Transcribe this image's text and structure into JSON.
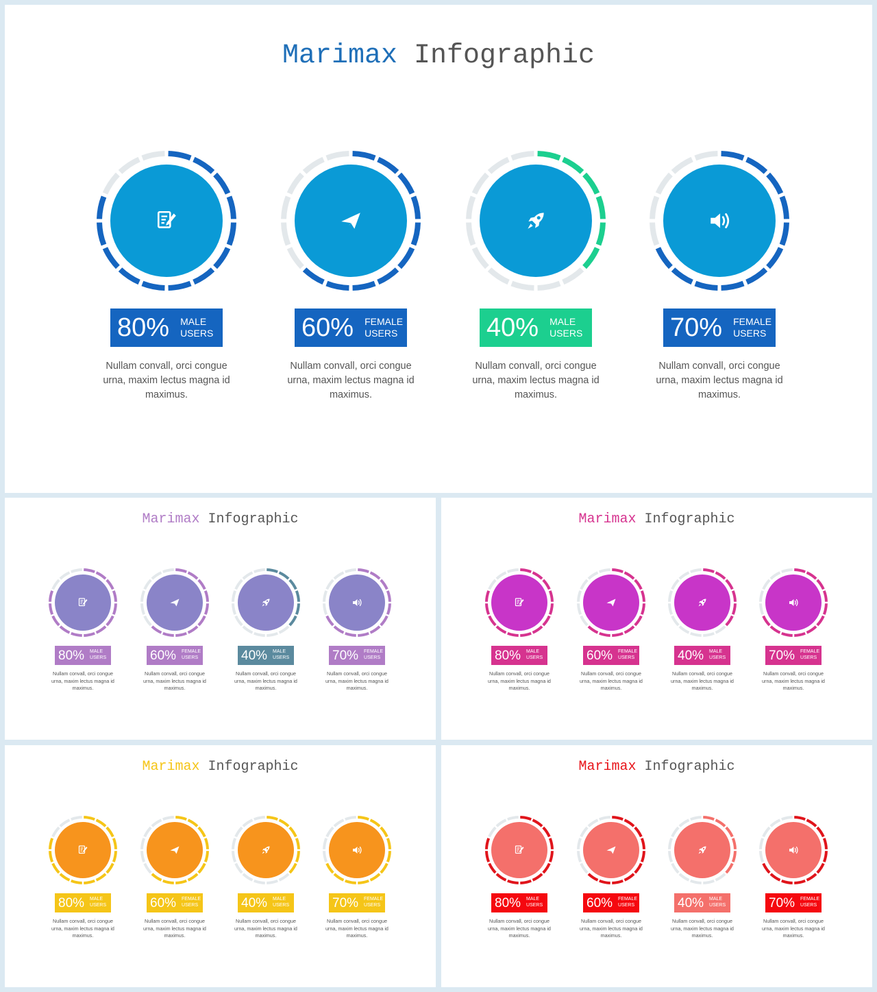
{
  "slides": [
    {
      "title_a": "Marimax",
      "title_b": "Infographic",
      "title_color": "#1f6fb8",
      "items": [
        {
          "icon": "document-edit-icon",
          "percent": "80%",
          "label1": "MALE",
          "label2": "USERS",
          "value": 0.8,
          "fill": "#0a9ad6",
          "arc": "#1565c0",
          "box": "#1565c0",
          "desc": [
            "Nullam convall, orci congue",
            "urna, maxim lectus magna id",
            "maximus."
          ]
        },
        {
          "icon": "paper-plane-icon",
          "percent": "60%",
          "label1": "FEMALE",
          "label2": "USERS",
          "value": 0.6,
          "fill": "#0a9ad6",
          "arc": "#1565c0",
          "box": "#1565c0",
          "desc": [
            "Nullam convall, orci congue",
            "urna, maxim lectus magna id",
            "maximus."
          ]
        },
        {
          "icon": "rocket-icon",
          "percent": "40%",
          "label1": "MALE",
          "label2": "USERS",
          "value": 0.4,
          "fill": "#0a9ad6",
          "arc": "#1ccf8f",
          "box": "#1ccf8f",
          "desc": [
            "Nullam convall, orci congue",
            "urna, maxim lectus magna id",
            "maximus."
          ]
        },
        {
          "icon": "speaker-icon",
          "percent": "70%",
          "label1": "FEMALE",
          "label2": "USERS",
          "value": 0.7,
          "fill": "#0a9ad6",
          "arc": "#1565c0",
          "box": "#1565c0",
          "desc": [
            "Nullam convall, orci congue",
            "urna, maxim lectus magna id",
            "maximus."
          ]
        }
      ]
    },
    {
      "title_a": "Marimax",
      "title_b": "Infographic",
      "title_color": "#b07cc6",
      "items": [
        {
          "icon": "document-edit-icon",
          "percent": "80%",
          "label1": "MALE",
          "label2": "USERS",
          "value": 0.8,
          "fill": "#8a84c8",
          "arc": "#b07cc6",
          "box": "#b07cc6",
          "desc": [
            "Nullam convall, orci congue",
            "urna, maxim lectus magna id",
            "maximus."
          ]
        },
        {
          "icon": "paper-plane-icon",
          "percent": "60%",
          "label1": "FEMALE",
          "label2": "USERS",
          "value": 0.6,
          "fill": "#8a84c8",
          "arc": "#b07cc6",
          "box": "#b07cc6",
          "desc": [
            "Nullam convall, orci congue",
            "urna, maxim lectus magna id",
            "maximus."
          ]
        },
        {
          "icon": "rocket-icon",
          "percent": "40%",
          "label1": "MALE",
          "label2": "USERS",
          "value": 0.4,
          "fill": "#8a84c8",
          "arc": "#5b8a9e",
          "box": "#5b8a9e",
          "desc": [
            "Nullam convall, orci congue",
            "urna, maxim lectus magna id",
            "maximus."
          ]
        },
        {
          "icon": "speaker-icon",
          "percent": "70%",
          "label1": "FEMALE",
          "label2": "USERS",
          "value": 0.7,
          "fill": "#8a84c8",
          "arc": "#b07cc6",
          "box": "#b07cc6",
          "desc": [
            "Nullam convall, orci congue",
            "urna, maxim lectus magna id",
            "maximus."
          ]
        }
      ]
    },
    {
      "title_a": "Marimax",
      "title_b": "Infographic",
      "title_color": "#d6338f",
      "items": [
        {
          "icon": "document-edit-icon",
          "percent": "80%",
          "label1": "MALE",
          "label2": "USERS",
          "value": 0.8,
          "fill": "#c835c8",
          "arc": "#d6338f",
          "box": "#d6338f",
          "desc": [
            "Nullam convall, orci congue",
            "urna, maxim lectus magna id",
            "maximus."
          ]
        },
        {
          "icon": "paper-plane-icon",
          "percent": "60%",
          "label1": "FEMALE",
          "label2": "USERS",
          "value": 0.6,
          "fill": "#c835c8",
          "arc": "#d6338f",
          "box": "#d6338f",
          "desc": [
            "Nullam convall, orci congue",
            "urna, maxim lectus magna id",
            "maximus."
          ]
        },
        {
          "icon": "rocket-icon",
          "percent": "40%",
          "label1": "MALE",
          "label2": "USERS",
          "value": 0.4,
          "fill": "#c835c8",
          "arc": "#d6338f",
          "box": "#d6338f",
          "desc": [
            "Nullam convall, orci congue",
            "urna, maxim lectus magna id",
            "maximus."
          ]
        },
        {
          "icon": "speaker-icon",
          "percent": "70%",
          "label1": "FEMALE",
          "label2": "USERS",
          "value": 0.7,
          "fill": "#c835c8",
          "arc": "#d6338f",
          "box": "#d6338f",
          "desc": [
            "Nullam convall, orci congue",
            "urna, maxim lectus magna id",
            "maximus."
          ]
        }
      ]
    },
    {
      "title_a": "Marimax",
      "title_b": "Infographic",
      "title_color": "#f5c518",
      "items": [
        {
          "icon": "document-edit-icon",
          "percent": "80%",
          "label1": "MALE",
          "label2": "USERS",
          "value": 0.8,
          "fill": "#f7941d",
          "arc": "#f5c518",
          "box": "#f5c518",
          "desc": [
            "Nullam convall, orci congue",
            "urna, maxim lectus magna id",
            "maximus."
          ]
        },
        {
          "icon": "paper-plane-icon",
          "percent": "60%",
          "label1": "FEMALE",
          "label2": "USERS",
          "value": 0.6,
          "fill": "#f7941d",
          "arc": "#f5c518",
          "box": "#f5c518",
          "desc": [
            "Nullam convall, orci congue",
            "urna, maxim lectus magna id",
            "maximus."
          ]
        },
        {
          "icon": "rocket-icon",
          "percent": "40%",
          "label1": "MALE",
          "label2": "USERS",
          "value": 0.4,
          "fill": "#f7941d",
          "arc": "#f5c518",
          "box": "#f5c518",
          "desc": [
            "Nullam convall, orci congue",
            "urna, maxim lectus magna id",
            "maximus."
          ]
        },
        {
          "icon": "speaker-icon",
          "percent": "70%",
          "label1": "FEMALE",
          "label2": "USERS",
          "value": 0.7,
          "fill": "#f7941d",
          "arc": "#f5c518",
          "box": "#f5c518",
          "desc": [
            "Nullam convall, orci congue",
            "urna, maxim lectus magna id",
            "maximus."
          ]
        }
      ]
    },
    {
      "title_a": "Marimax",
      "title_b": "Infographic",
      "title_color": "#e8141a",
      "items": [
        {
          "icon": "document-edit-icon",
          "percent": "80%",
          "label1": "MALE",
          "label2": "USERS",
          "value": 0.8,
          "fill": "#f4706b",
          "arc": "#e0141b",
          "box": "#f5080f",
          "desc": [
            "Nullam convall, orci congue",
            "urna, maxim lectus magna id",
            "maximus."
          ]
        },
        {
          "icon": "paper-plane-icon",
          "percent": "60%",
          "label1": "FEMALE",
          "label2": "USERS",
          "value": 0.6,
          "fill": "#f4706b",
          "arc": "#e0141b",
          "box": "#f5080f",
          "desc": [
            "Nullam convall, orci congue",
            "urna, maxim lectus magna id",
            "maximus."
          ]
        },
        {
          "icon": "rocket-icon",
          "percent": "40%",
          "label1": "MALE",
          "label2": "USERS",
          "value": 0.4,
          "fill": "#f4706b",
          "arc": "#f4706b",
          "box": "#f4706b",
          "desc": [
            "Nullam convall, orci congue",
            "urna, maxim lectus magna id",
            "maximus."
          ]
        },
        {
          "icon": "speaker-icon",
          "percent": "70%",
          "label1": "FEMALE",
          "label2": "USERS",
          "value": 0.7,
          "fill": "#f4706b",
          "arc": "#e0141b",
          "box": "#f5080f",
          "desc": [
            "Nullam convall, orci congue",
            "urna, maxim lectus magna id",
            "maximus."
          ]
        }
      ]
    }
  ]
}
